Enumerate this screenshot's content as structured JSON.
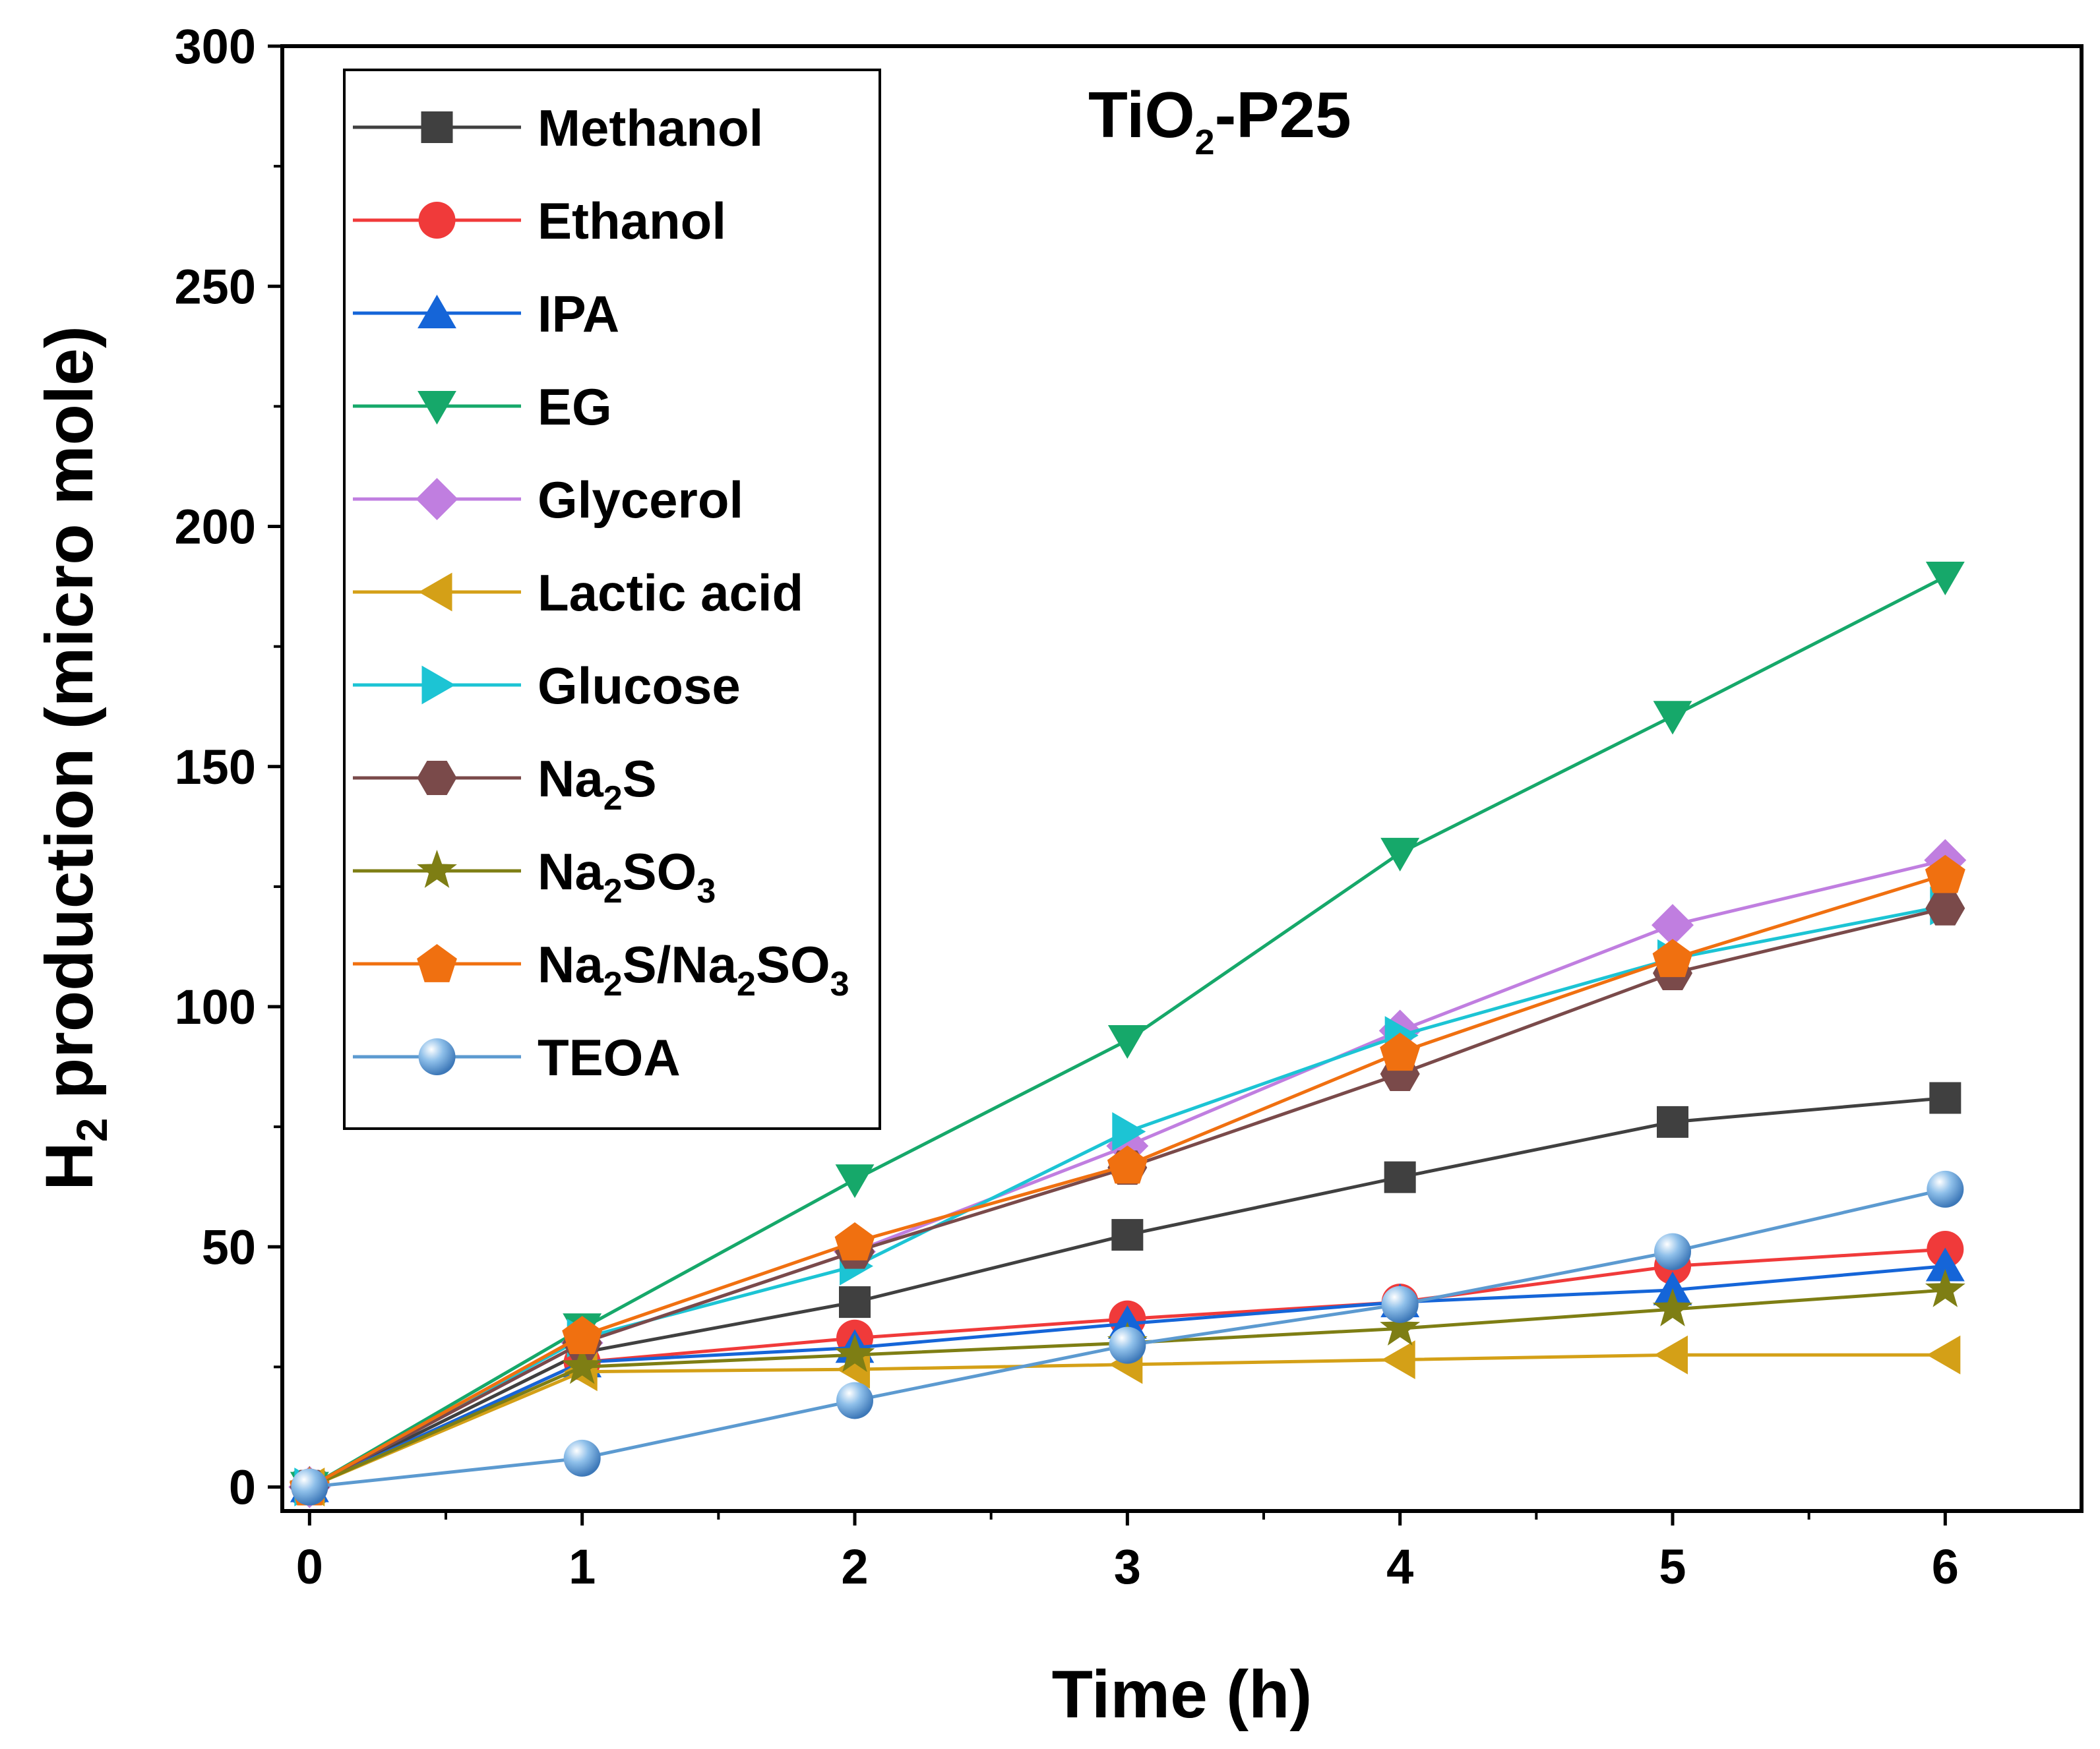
{
  "chart_data": {
    "type": "line",
    "title": "TiO2-P25",
    "title_parts": {
      "main": "TiO",
      "sub": "2",
      "rest": "-P25"
    },
    "xlabel": "Time (h)",
    "ylabel_parts": {
      "main": "H",
      "sub": "2",
      "rest": " production (micro mole)"
    },
    "x": [
      0,
      1,
      2,
      3,
      4,
      5,
      6
    ],
    "xlim": [
      -0.1,
      6.5
    ],
    "ylim": [
      -5,
      300
    ],
    "x_ticks": [
      "0",
      "1",
      "2",
      "3",
      "4",
      "5",
      "6"
    ],
    "y_ticks": [
      "0",
      "50",
      "100",
      "150",
      "200",
      "250",
      "300"
    ],
    "legend_position": "top-left",
    "series": [
      {
        "name": "Methanol",
        "name_parts": [
          "Methanol"
        ],
        "color": "#404040",
        "marker": "square",
        "values": [
          0,
          28,
          38.5,
          52.5,
          64.5,
          76,
          81
        ]
      },
      {
        "name": "Ethanol",
        "name_parts": [
          "Ethanol"
        ],
        "color": "#f03a3a",
        "marker": "circle",
        "values": [
          0,
          26,
          31,
          35,
          38.5,
          46,
          49.5
        ]
      },
      {
        "name": "IPA",
        "name_parts": [
          "IPA"
        ],
        "color": "#1565d8",
        "marker": "triangle-up",
        "values": [
          0,
          26,
          29,
          34,
          38.5,
          41,
          46
        ]
      },
      {
        "name": "EG",
        "name_parts": [
          "EG"
        ],
        "color": "#16a86a",
        "marker": "triangle-down",
        "values": [
          0,
          33,
          64,
          93,
          132,
          160.5,
          189.5
        ]
      },
      {
        "name": "Glycerol",
        "name_parts": [
          "Glycerol"
        ],
        "color": "#c07ee0",
        "marker": "diamond",
        "values": [
          0,
          30,
          49,
          71,
          95,
          117,
          130.5
        ]
      },
      {
        "name": "Lactic acid",
        "name_parts": [
          "Lactic acid"
        ],
        "color": "#d4a017",
        "marker": "triangle-left",
        "values": [
          0,
          24,
          24.5,
          25.5,
          26.5,
          27.5,
          27.5
        ]
      },
      {
        "name": "Glucose",
        "name_parts": [
          "Glucose"
        ],
        "color": "#1cc4d4",
        "marker": "triangle-right",
        "values": [
          0,
          31,
          46,
          74,
          94,
          110,
          121
        ]
      },
      {
        "name": "Na2S",
        "name_parts": [
          "Na",
          "2",
          "S"
        ],
        "color": "#7a4a4a",
        "marker": "hexagon",
        "values": [
          0,
          30,
          49,
          66.5,
          86,
          107,
          120.5
        ]
      },
      {
        "name": "Na2SO3",
        "name_parts": [
          "Na",
          "2",
          "SO",
          "3"
        ],
        "color": "#7e7e14",
        "marker": "star",
        "values": [
          0,
          25,
          27.5,
          30,
          33,
          37,
          41
        ]
      },
      {
        "name": "Na2S/Na2SO3",
        "name_parts": [
          "Na",
          "2",
          "S/Na",
          "2",
          "SO",
          "3"
        ],
        "color": "#f07010",
        "marker": "pentagon",
        "values": [
          0,
          31.5,
          51,
          67,
          90.5,
          110,
          127.5
        ]
      },
      {
        "name": "TEOA",
        "name_parts": [
          "TEOA"
        ],
        "color": "#5c9ad0",
        "marker": "sphere",
        "values": [
          0,
          6,
          18,
          29.5,
          38,
          49,
          62
        ]
      }
    ]
  }
}
